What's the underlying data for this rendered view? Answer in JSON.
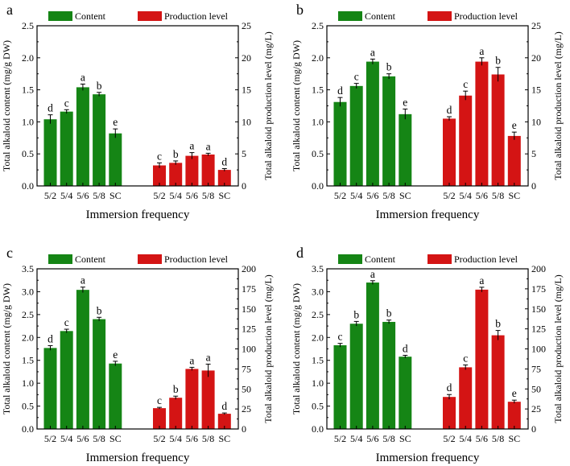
{
  "colors": {
    "content": "#158515",
    "production": "#d41414",
    "axis": "#000000"
  },
  "chart_data": [
    {
      "type": "bar",
      "panel_label": "a",
      "categories": [
        "5/2",
        "5/4",
        "5/6",
        "5/8",
        "SC"
      ],
      "xlabel": "Immersion frequency",
      "ylabel_left": "Total alkaloid content (mg/g DW)",
      "ylabel_right": "Total alkaloid production level (mg/L)",
      "ylim_left": [
        0,
        2.5
      ],
      "yticks_left": [
        "0.0",
        "0.5",
        "1.0",
        "1.5",
        "2.0",
        "2.5"
      ],
      "ylim_right": [
        0,
        25
      ],
      "yticks_right": [
        "0",
        "5",
        "10",
        "15",
        "20",
        "25"
      ],
      "series": [
        {
          "name": "Content",
          "axis": "left",
          "values": [
            1.04,
            1.16,
            1.54,
            1.43,
            0.82
          ],
          "errors": [
            0.07,
            0.03,
            0.05,
            0.03,
            0.07
          ],
          "letters": [
            "d",
            "c",
            "a",
            "b",
            "e"
          ]
        },
        {
          "name": "Production level",
          "axis": "right",
          "values": [
            3.2,
            3.6,
            4.7,
            4.9,
            2.5
          ],
          "errors": [
            0.4,
            0.3,
            0.5,
            0.2,
            0.2
          ],
          "letters": [
            "c",
            "b",
            "a",
            "a",
            "d"
          ]
        }
      ]
    },
    {
      "type": "bar",
      "panel_label": "b",
      "categories": [
        "5/2",
        "5/4",
        "5/6",
        "5/8",
        "SC"
      ],
      "xlabel": "Immersion frequency",
      "ylabel_left": "Total alkaloid content (mg/g DW)",
      "ylabel_right": "Total alkaloid production level (mg/L)",
      "ylim_left": [
        0,
        2.5
      ],
      "yticks_left": [
        "0.0",
        "0.5",
        "1.0",
        "1.5",
        "2.0",
        "2.5"
      ],
      "ylim_right": [
        0,
        25
      ],
      "yticks_right": [
        "0",
        "5",
        "10",
        "15",
        "20",
        "25"
      ],
      "series": [
        {
          "name": "Content",
          "axis": "left",
          "values": [
            1.31,
            1.56,
            1.94,
            1.71,
            1.12
          ],
          "errors": [
            0.07,
            0.04,
            0.04,
            0.04,
            0.08
          ],
          "letters": [
            "d",
            "c",
            "a",
            "b",
            "e"
          ]
        },
        {
          "name": "Production level",
          "axis": "right",
          "values": [
            10.5,
            14.1,
            19.4,
            17.4,
            7.8
          ],
          "errors": [
            0.3,
            0.7,
            0.6,
            1.1,
            0.6
          ],
          "letters": [
            "d",
            "c",
            "a",
            "b",
            "e"
          ]
        }
      ]
    },
    {
      "type": "bar",
      "panel_label": "c",
      "categories": [
        "5/2",
        "5/4",
        "5/6",
        "5/8",
        "SC"
      ],
      "xlabel": "Immersion frequency",
      "ylabel_left": "Total alkaloid content (mg/g DW)",
      "ylabel_right": "Total alkaloid production level (mg/L)",
      "ylim_left": [
        0,
        3.5
      ],
      "yticks_left": [
        "0.0",
        "0.5",
        "1.0",
        "1.5",
        "2.0",
        "2.5",
        "3.0",
        "3.5"
      ],
      "ylim_right": [
        0,
        200
      ],
      "yticks_right": [
        "0",
        "25",
        "50",
        "75",
        "100",
        "125",
        "150",
        "175",
        "200"
      ],
      "series": [
        {
          "name": "Content",
          "axis": "left",
          "values": [
            1.77,
            2.14,
            3.04,
            2.4,
            1.43
          ],
          "errors": [
            0.05,
            0.04,
            0.06,
            0.04,
            0.05
          ],
          "letters": [
            "d",
            "c",
            "a",
            "b",
            "e"
          ]
        },
        {
          "name": "Production level",
          "axis": "right",
          "values": [
            26,
            39,
            75,
            73,
            19
          ],
          "errors": [
            1,
            2,
            2,
            8,
            1
          ],
          "letters": [
            "c",
            "b",
            "a",
            "a",
            "d"
          ]
        }
      ]
    },
    {
      "type": "bar",
      "panel_label": "d",
      "categories": [
        "5/2",
        "5/4",
        "5/6",
        "5/8",
        "SC"
      ],
      "xlabel": "Immersion frequency",
      "ylabel_left": "Total alkaloid content (mg/g DW)",
      "ylabel_right": "Total alkaloid production level (mg/L)",
      "ylim_left": [
        0,
        3.5
      ],
      "yticks_left": [
        "0.0",
        "0.5",
        "1.0",
        "1.5",
        "2.0",
        "2.5",
        "3.0",
        "3.5"
      ],
      "ylim_right": [
        0,
        200
      ],
      "yticks_right": [
        "0",
        "25",
        "50",
        "75",
        "100",
        "125",
        "150",
        "175",
        "200"
      ],
      "series": [
        {
          "name": "Content",
          "axis": "left",
          "values": [
            1.83,
            2.3,
            3.2,
            2.34,
            1.58
          ],
          "errors": [
            0.04,
            0.05,
            0.04,
            0.04,
            0.03
          ],
          "letters": [
            "c",
            "b",
            "a",
            "b",
            "d"
          ]
        },
        {
          "name": "Production level",
          "axis": "right",
          "values": [
            40,
            77,
            174,
            117,
            34
          ],
          "errors": [
            3,
            3,
            3,
            6,
            2
          ],
          "letters": [
            "d",
            "c",
            "a",
            "b",
            "e"
          ]
        }
      ]
    }
  ]
}
